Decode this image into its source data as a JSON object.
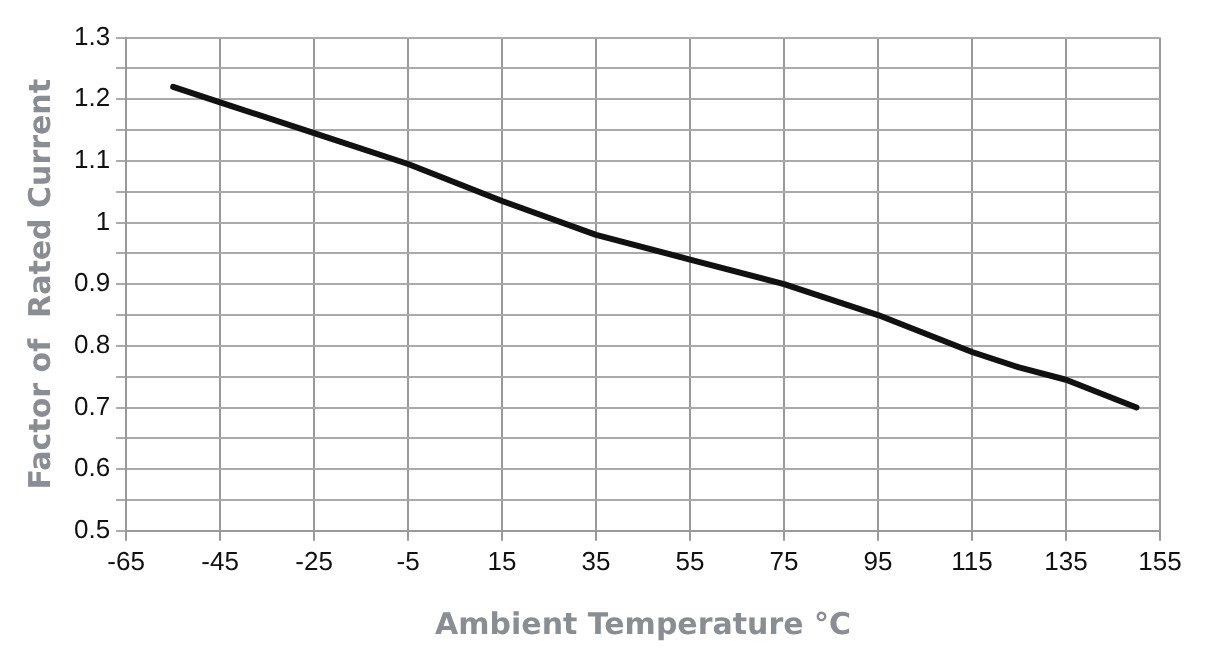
{
  "chart_data": {
    "type": "line",
    "xlabel": "Ambient Temperature °C",
    "ylabel": "Factor of  Rated Current",
    "x": [
      -55,
      -45,
      -25,
      -5,
      5,
      15,
      35,
      55,
      75,
      85,
      95,
      105,
      115,
      125,
      135,
      150
    ],
    "series": [
      {
        "color": "#111111",
        "values": [
          1.22,
          1.195,
          1.145,
          1.095,
          1.065,
          1.035,
          0.98,
          0.94,
          0.9,
          0.875,
          0.85,
          0.82,
          0.79,
          0.765,
          0.745,
          0.7
        ]
      }
    ],
    "xlim": [
      -65,
      155
    ],
    "xticks": [
      -65,
      -45,
      -25,
      -5,
      15,
      35,
      55,
      75,
      95,
      115,
      135,
      155
    ],
    "ylim": [
      0.5,
      1.3
    ],
    "yticks": [
      0.5,
      {
        "value": 0.55,
        "label": null
      },
      0.6,
      {
        "value": 0.65,
        "label": null
      },
      0.7,
      {
        "value": 0.75,
        "label": null
      },
      0.8,
      {
        "value": 0.85,
        "label": null
      },
      0.9,
      {
        "value": 0.95,
        "label": null
      },
      {
        "value": 1,
        "label": "1"
      },
      {
        "value": 1.05,
        "label": null
      },
      1.1,
      {
        "value": 1.15,
        "label": null
      },
      1.2,
      {
        "value": 1.25,
        "label": null
      },
      1.3
    ],
    "grid": true,
    "marker": "none",
    "line_style": "solid"
  }
}
